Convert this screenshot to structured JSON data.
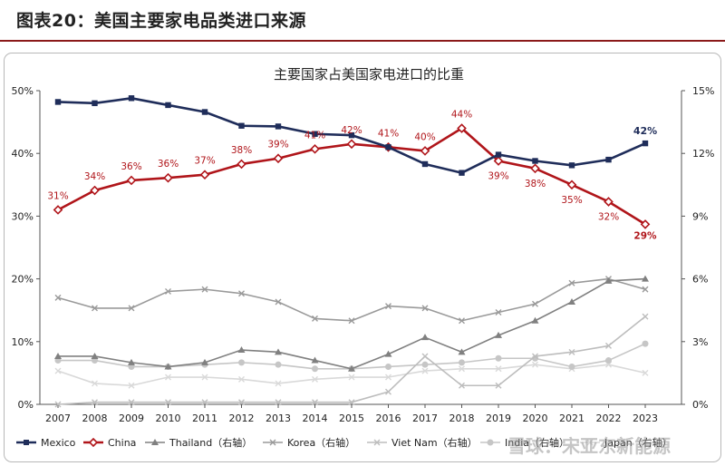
{
  "figure_title": "图表20：美国主要家电品类进口来源",
  "watermark": "雪球：宋亚东新能源",
  "chart_data": {
    "type": "line",
    "title": "主要国家占美国家电进口的比重",
    "x": [
      "2007",
      "2008",
      "2009",
      "2010",
      "2011",
      "2012",
      "2013",
      "2014",
      "2015",
      "2016",
      "2017",
      "2018",
      "2019",
      "2020",
      "2021",
      "2022",
      "2023"
    ],
    "left_axis": {
      "ticks": [
        "0%",
        "10%",
        "20%",
        "30%",
        "40%",
        "50%"
      ],
      "range": [
        0,
        50
      ]
    },
    "right_axis": {
      "ticks": [
        "0%",
        "3%",
        "6%",
        "9%",
        "12%",
        "15%"
      ],
      "range": [
        0,
        15
      ]
    },
    "grid": false,
    "legend_position": "bottom",
    "series": [
      {
        "name": "Mexico",
        "axis": "left",
        "color": "#1f2d5a",
        "marker": "square",
        "values": [
          48.2,
          48.0,
          48.8,
          47.7,
          46.6,
          44.4,
          44.3,
          43.1,
          42.9,
          41.0,
          38.3,
          36.9,
          39.8,
          38.8,
          38.1,
          39.0,
          41.6
        ],
        "labels": {
          "16": "42%"
        }
      },
      {
        "name": "China",
        "axis": "left",
        "color": "#b0151a",
        "marker": "diamond",
        "values": [
          31.0,
          34.1,
          35.7,
          36.1,
          36.6,
          38.3,
          39.2,
          40.7,
          41.5,
          41.0,
          40.4,
          44.0,
          38.8,
          37.6,
          35.0,
          32.3,
          28.7
        ],
        "labels": [
          "31%",
          "34%",
          "36%",
          "36%",
          "37%",
          "38%",
          "39%",
          "41%",
          "42%",
          "41%",
          "40%",
          "44%",
          "39%",
          "38%",
          "35%",
          "32%",
          "29%"
        ]
      },
      {
        "name": "Thailand（右轴）",
        "axis": "right",
        "color": "#808080",
        "marker": "triangle",
        "values": [
          2.3,
          2.3,
          2.0,
          1.8,
          2.0,
          2.6,
          2.5,
          2.1,
          1.7,
          2.4,
          3.2,
          2.5,
          3.3,
          4.0,
          4.9,
          5.9,
          6.0
        ]
      },
      {
        "name": "Korea（右轴）",
        "axis": "right",
        "color": "#9a9a9a",
        "marker": "x",
        "values": [
          5.1,
          4.6,
          4.6,
          5.4,
          5.5,
          5.3,
          4.9,
          4.1,
          4.0,
          4.7,
          4.6,
          4.0,
          4.4,
          4.8,
          5.8,
          6.0,
          5.5
        ]
      },
      {
        "name": "Viet Nam（右轴）",
        "axis": "right",
        "color": "#bdbdbd",
        "marker": "x",
        "values": [
          0.0,
          0.1,
          0.1,
          0.1,
          0.1,
          0.1,
          0.1,
          0.1,
          0.1,
          0.6,
          2.3,
          0.9,
          0.9,
          2.3,
          2.5,
          2.8,
          4.2
        ]
      },
      {
        "name": "India（右轴）",
        "axis": "right",
        "color": "#c6c6c6",
        "marker": "circle",
        "values": [
          2.1,
          2.1,
          1.8,
          1.8,
          1.9,
          2.0,
          1.9,
          1.7,
          1.7,
          1.8,
          1.9,
          2.0,
          2.2,
          2.2,
          1.8,
          2.1,
          2.9
        ]
      },
      {
        "name": "Japan（右轴）",
        "axis": "right",
        "color": "#d9d9d9",
        "marker": "x",
        "values": [
          1.6,
          1.0,
          0.9,
          1.3,
          1.3,
          1.2,
          1.0,
          1.2,
          1.3,
          1.3,
          1.6,
          1.7,
          1.7,
          1.9,
          1.7,
          1.9,
          1.5
        ]
      }
    ]
  }
}
